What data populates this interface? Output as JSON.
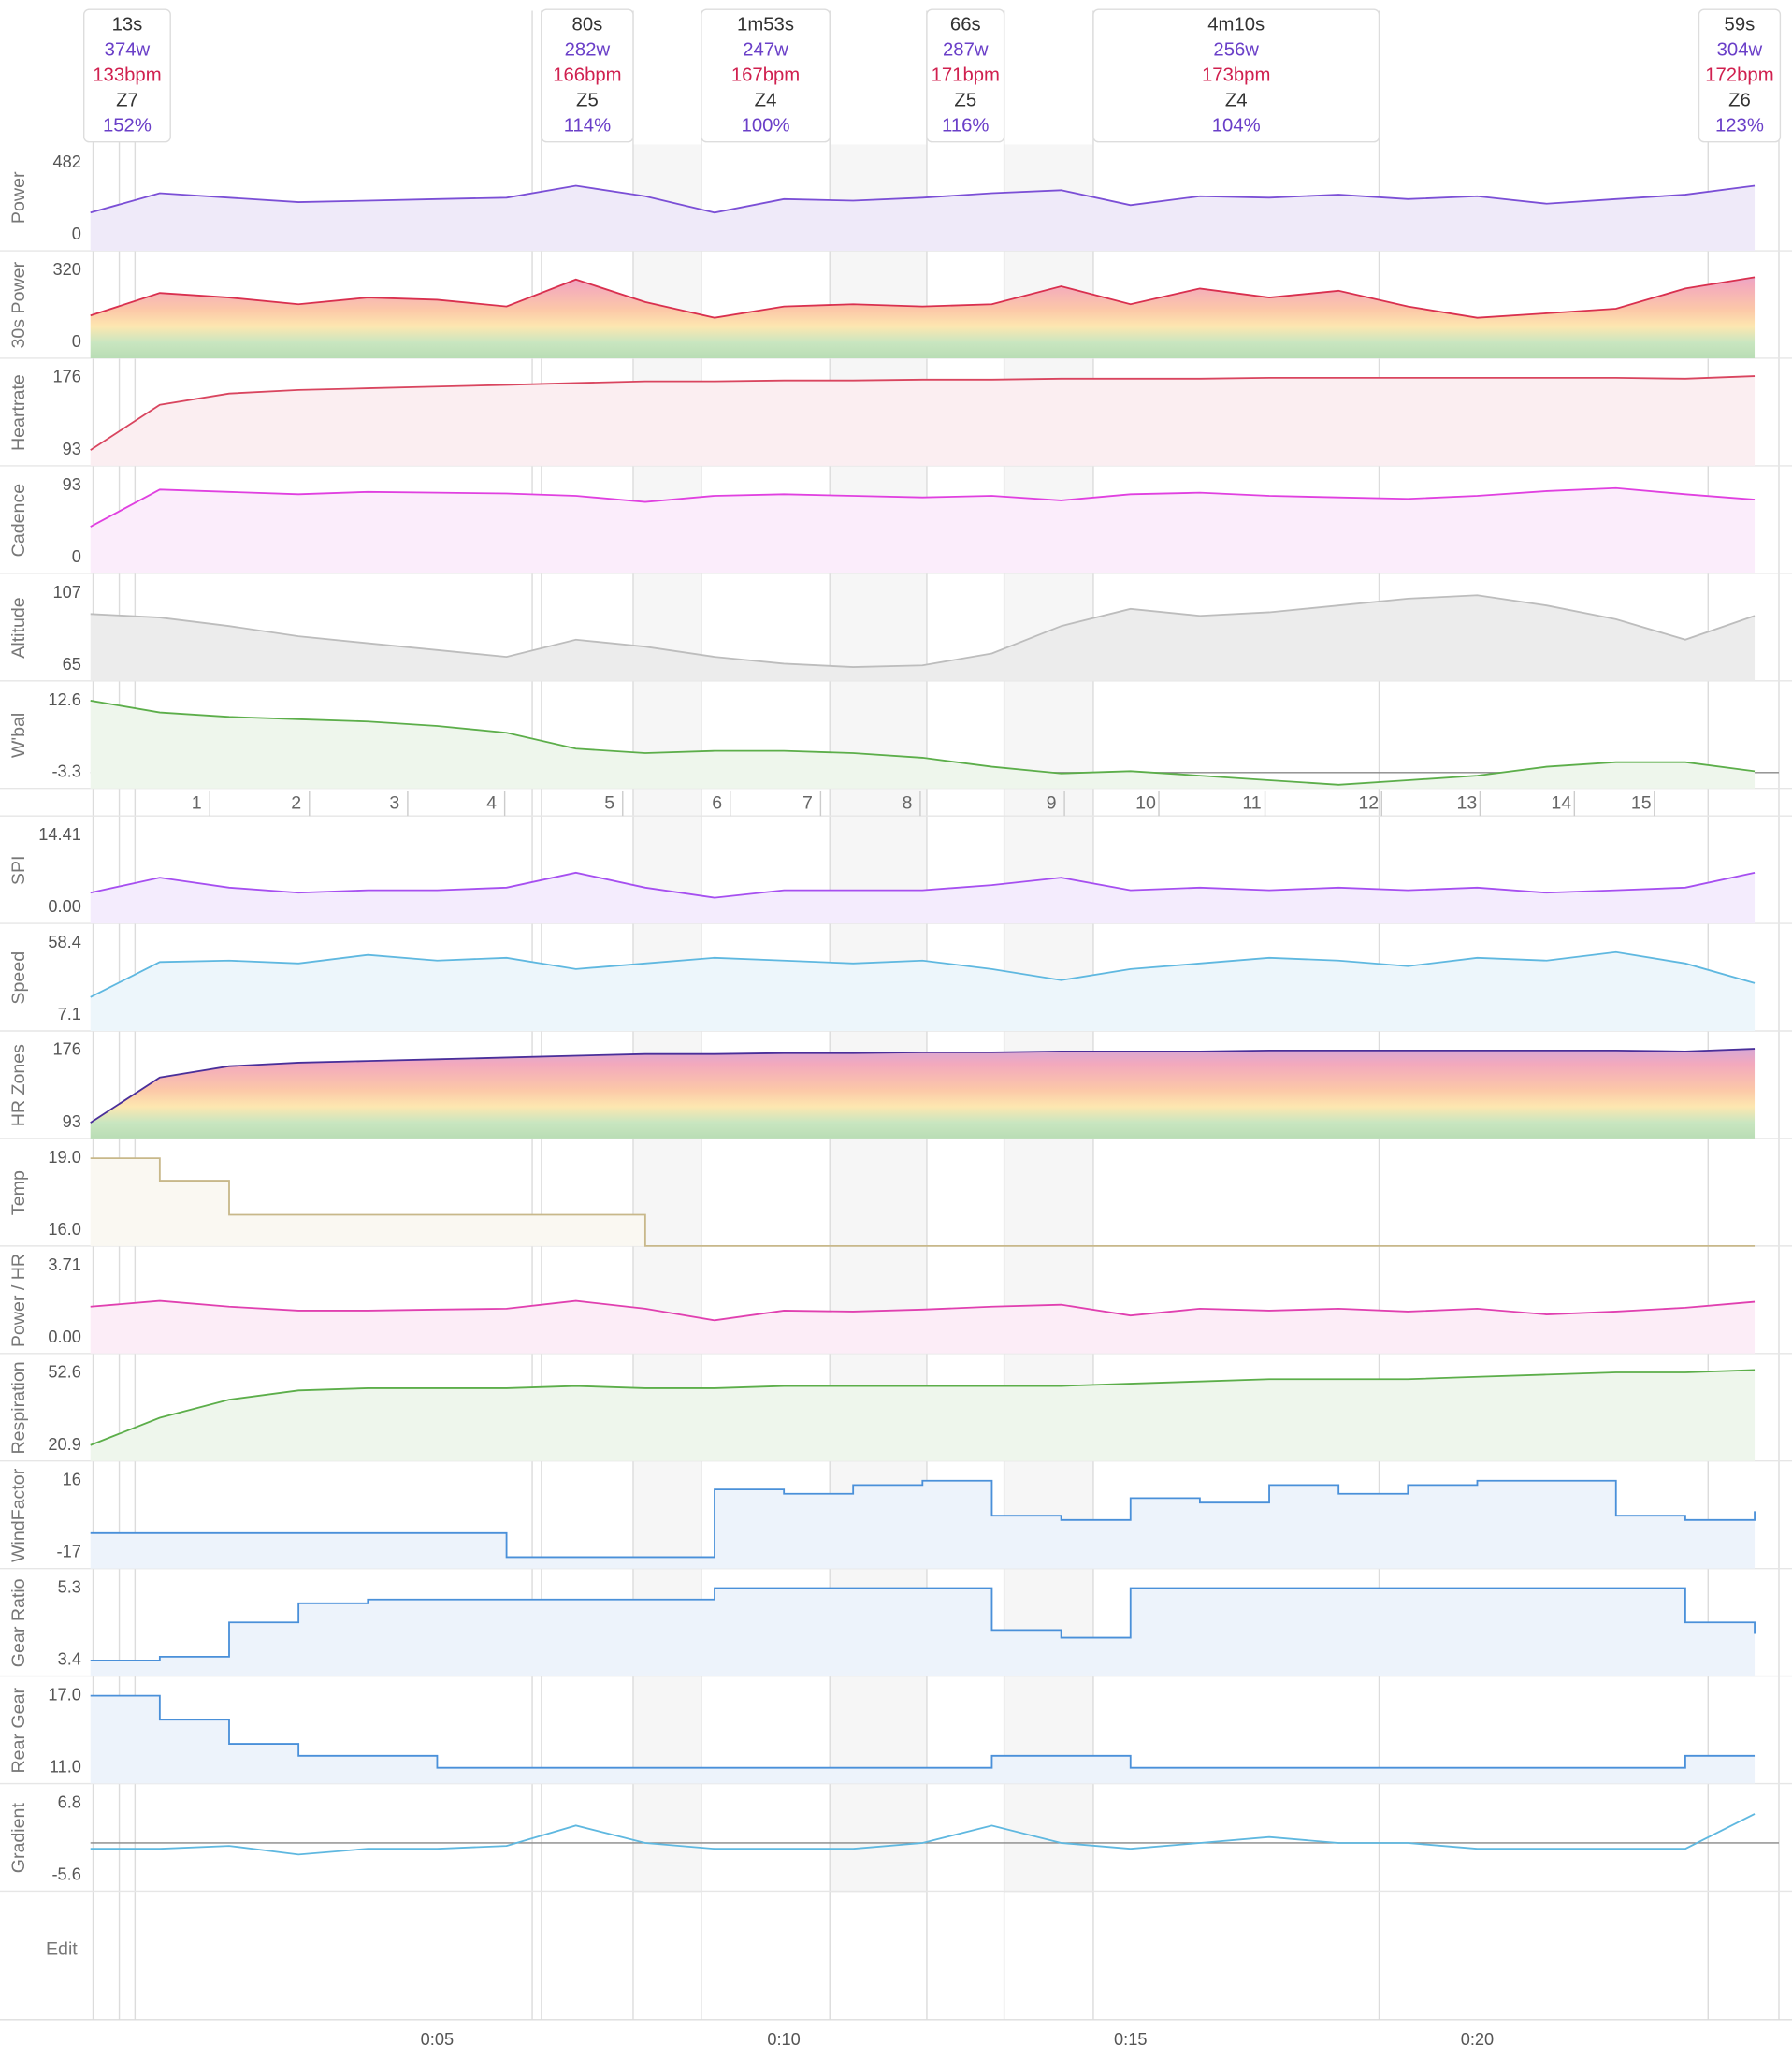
{
  "intervals": [
    {
      "duration": "13s",
      "power": "374w",
      "heartrate": "133bpm",
      "zone": "Z7",
      "percent": "152%"
    },
    {
      "duration": "80s",
      "power": "282w",
      "heartrate": "166bpm",
      "zone": "Z5",
      "percent": "114%"
    },
    {
      "duration": "1m53s",
      "power": "247w",
      "heartrate": "167bpm",
      "zone": "Z4",
      "percent": "100%"
    },
    {
      "duration": "66s",
      "power": "287w",
      "heartrate": "171bpm",
      "zone": "Z5",
      "percent": "116%"
    },
    {
      "duration": "4m10s",
      "power": "256w",
      "heartrate": "173bpm",
      "zone": "Z4",
      "percent": "104%"
    },
    {
      "duration": "59s",
      "power": "304w",
      "heartrate": "172bpm",
      "zone": "Z6",
      "percent": "123%"
    }
  ],
  "laps": [
    "1",
    "2",
    "3",
    "4",
    "5",
    "6",
    "7",
    "8",
    "9",
    "10",
    "11",
    "12",
    "13",
    "14",
    "15"
  ],
  "edit": "Edit",
  "chart_data": {
    "type": "line",
    "x": [
      0,
      1,
      2,
      3,
      4,
      5,
      6,
      7,
      8,
      9,
      10,
      11,
      12,
      13,
      14,
      15,
      16,
      17,
      18,
      19,
      20,
      21,
      22,
      23,
      24
    ],
    "xlim": [
      0,
      24.35
    ],
    "xticks": [
      {
        "value": 5,
        "label": "0:05"
      },
      {
        "value": 10,
        "label": "0:10"
      },
      {
        "value": 15,
        "label": "0:15"
      },
      {
        "value": 20,
        "label": "0:20"
      }
    ],
    "panels": [
      {
        "ylabel": "Power",
        "ylim": [
          -105,
          605
        ],
        "yticks": [
          0,
          482
        ],
        "color": "#7b4fd6",
        "fill": "#efeaf9",
        "values": [
          150,
          280,
          250,
          220,
          230,
          240,
          250,
          330,
          260,
          150,
          240,
          230,
          250,
          280,
          300,
          200,
          260,
          250,
          270,
          240,
          260,
          210,
          240,
          270,
          330
        ]
      },
      {
        "ylabel": "30s Power",
        "ylim": [
          -70,
          402
        ],
        "yticks": [
          0,
          320
        ],
        "color": "#d9304f",
        "gradient": true,
        "values": [
          120,
          220,
          200,
          170,
          200,
          190,
          160,
          280,
          180,
          110,
          160,
          170,
          160,
          170,
          250,
          170,
          240,
          200,
          230,
          160,
          110,
          130,
          150,
          240,
          290
        ]
      },
      {
        "ylabel": "Heartrate",
        "ylim": [
          75,
          197
        ],
        "yticks": [
          93,
          176
        ],
        "color": "#d9455f",
        "fill": "#fbeef1",
        "values": [
          93,
          145,
          158,
          162,
          164,
          166,
          168,
          170,
          172,
          172,
          173,
          173,
          174,
          174,
          175,
          175,
          175,
          176,
          176,
          176,
          176,
          176,
          176,
          175,
          178
        ]
      },
      {
        "ylabel": "Cadence",
        "ylim": [
          -20,
          117
        ],
        "yticks": [
          0,
          93
        ],
        "color": "#e040e0",
        "fill": "#fbedfb",
        "values": [
          40,
          88,
          85,
          82,
          85,
          84,
          83,
          80,
          72,
          80,
          82,
          80,
          78,
          80,
          74,
          82,
          84,
          80,
          78,
          76,
          80,
          86,
          90,
          82,
          75
        ]
      },
      {
        "ylabel": "Altitude",
        "ylim": [
          56,
          118
        ],
        "yticks": [
          65,
          107
        ],
        "color": "#bdbdbd",
        "fill": "#ececec",
        "values": [
          95,
          93,
          88,
          82,
          78,
          74,
          70,
          80,
          76,
          70,
          66,
          64,
          65,
          72,
          88,
          98,
          94,
          96,
          100,
          104,
          106,
          100,
          92,
          80,
          94
        ]
      },
      {
        "ylabel": "W'bal",
        "ylim": [
          -6.8,
          16.7
        ],
        "yticks": [
          -3.3,
          12.6
        ],
        "baseline": -3.3,
        "color": "#5cae4a",
        "fill": "#eef6ec",
        "values": [
          12.6,
          10,
          9,
          8.5,
          8,
          7,
          5.5,
          2,
          1,
          1.5,
          1.5,
          1,
          0,
          -2,
          -3.5,
          -3,
          -4,
          -5,
          -6,
          -5,
          -4,
          -2,
          -1,
          -1,
          -3
        ]
      },
      {
        "ylabel": "SPI",
        "ylim": [
          -3.14,
          18.08
        ],
        "yticks": [
          {
            "value": 0,
            "label": "0.00"
          },
          14.41
        ],
        "color": "#a64ff0",
        "fill": "#f4ecfd",
        "values": [
          3,
          6,
          4,
          3,
          3.5,
          3.5,
          4,
          7,
          4,
          2,
          3.5,
          3.5,
          3.5,
          4.5,
          6,
          3.5,
          4,
          3.5,
          4,
          3.5,
          4,
          3,
          3.5,
          4,
          7
        ]
      },
      {
        "ylabel": "Speed",
        "ylim": [
          -4.1,
          71.5
        ],
        "yticks": [
          7.1,
          58.4
        ],
        "color": "#5fb8e0",
        "fill": "#edf6fb",
        "values": [
          20,
          45,
          46,
          44,
          50,
          46,
          48,
          40,
          44,
          48,
          46,
          44,
          46,
          40,
          32,
          40,
          44,
          48,
          46,
          42,
          48,
          46,
          52,
          44,
          30
        ]
      },
      {
        "ylabel": "HR Zones",
        "ylim": [
          75,
          197
        ],
        "yticks": [
          93,
          176
        ],
        "color": "#4a2f9a",
        "gradient": true,
        "values": [
          93,
          145,
          158,
          162,
          164,
          166,
          168,
          170,
          172,
          172,
          173,
          173,
          174,
          174,
          175,
          175,
          175,
          176,
          176,
          176,
          176,
          176,
          176,
          175,
          178
        ]
      },
      {
        "ylabel": "Temp",
        "ylim": [
          15.35,
          19.77
        ],
        "yticks": [
          {
            "value": 16,
            "label": "16.0"
          },
          {
            "value": 19,
            "label": "19.0"
          }
        ],
        "step": true,
        "color": "#c8b88a",
        "fill": "#faf8f2",
        "values": [
          19,
          18.07,
          16.65,
          16.65,
          16.65,
          16.65,
          16.65,
          16.65,
          15.35,
          15.35,
          15.35,
          15.35,
          15.35,
          15.35,
          15.35,
          15.35,
          15.35,
          15.35,
          15.35,
          15.35,
          15.35,
          15.35,
          15.35,
          15.35,
          15.35
        ]
      },
      {
        "ylabel": "Power / HR",
        "ylim": [
          -0.81,
          4.66
        ],
        "yticks": [
          {
            "value": 0,
            "label": "0.00"
          },
          3.71
        ],
        "color": "#e040b0",
        "fill": "#fcedf7",
        "values": [
          1.6,
          1.9,
          1.6,
          1.4,
          1.4,
          1.45,
          1.5,
          1.9,
          1.5,
          0.9,
          1.4,
          1.35,
          1.45,
          1.6,
          1.7,
          1.15,
          1.5,
          1.4,
          1.5,
          1.35,
          1.5,
          1.2,
          1.35,
          1.55,
          1.85
        ]
      },
      {
        "ylabel": "Respiration",
        "ylim": [
          14,
          60.7
        ],
        "yticks": [
          20.9,
          52.6
        ],
        "color": "#5cae4a",
        "fill": "#eef6ec",
        "values": [
          21,
          33,
          41,
          45,
          46,
          46,
          46,
          47,
          46,
          46,
          47,
          47,
          47,
          47,
          47,
          48,
          49,
          50,
          50,
          50,
          51,
          52,
          53,
          53,
          54
        ]
      },
      {
        "ylabel": "WindFactor",
        "ylim": [
          -24.2,
          24.4
        ],
        "yticks": [
          -17,
          16
        ],
        "step": true,
        "color": "#4a90d9",
        "fill": "#edf3fb",
        "values": [
          -8,
          -8,
          -8,
          -8,
          -8,
          -8,
          -19,
          -19,
          -19,
          12,
          10,
          14,
          16,
          0,
          -2,
          8,
          6,
          14,
          10,
          14,
          16,
          16,
          0,
          -2,
          2
        ]
      },
      {
        "ylabel": "Gear Ratio",
        "ylim": [
          2.99,
          5.78
        ],
        "yticks": [
          3.4,
          5.3
        ],
        "step": true,
        "color": "#4a90d9",
        "fill": "#edf3fb",
        "values": [
          3.4,
          3.5,
          4.4,
          4.9,
          5,
          5,
          5,
          5,
          5,
          5.3,
          5.3,
          5.3,
          5.3,
          4.2,
          4,
          5.3,
          5.3,
          5.3,
          5.3,
          5.3,
          5.3,
          5.3,
          5.3,
          4.4,
          4.1
        ]
      },
      {
        "ylabel": "Rear Gear",
        "ylim": [
          9.69,
          18.53
        ],
        "yticks": [
          {
            "value": 11,
            "label": "11.0"
          },
          {
            "value": 17,
            "label": "17.0"
          }
        ],
        "step": true,
        "color": "#4a90d9",
        "fill": "#edf3fb",
        "values": [
          17,
          15,
          13,
          12,
          12,
          11,
          11,
          11,
          11,
          11,
          11,
          11,
          11,
          12,
          12,
          11,
          11,
          11,
          11,
          11,
          11,
          11,
          11,
          12,
          12
        ]
      },
      {
        "ylabel": "Gradient",
        "ylim": [
          -8.3,
          10
        ],
        "yticks": [
          -5.6,
          6.8
        ],
        "baseline": 0,
        "color": "#5fb8e0",
        "values": [
          -1,
          -1,
          -0.5,
          -2,
          -1,
          -1,
          -0.5,
          3,
          0,
          -1,
          -1,
          -1,
          0,
          3,
          0,
          -1,
          0,
          1,
          0,
          0,
          -1,
          -1,
          -1,
          -1,
          5
        ]
      }
    ]
  }
}
